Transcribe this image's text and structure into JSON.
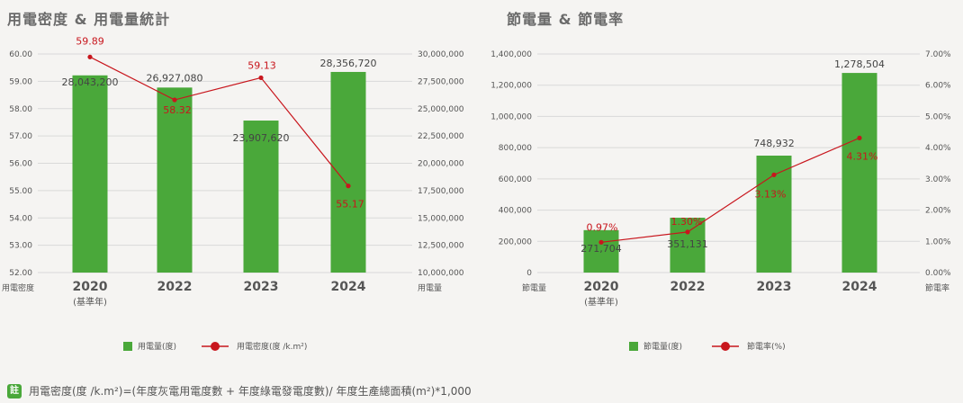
{
  "titles": {
    "left": "用電密度 & 用電量統計",
    "right": "節電量 & 節電率"
  },
  "colors": {
    "bar": "#4aa83a",
    "line": "#c8161d",
    "grid": "#d9d9d9"
  },
  "chart_data": [
    {
      "type": "bar+line",
      "title": "用電密度 & 用電量統計",
      "categories": [
        "2020",
        "2022",
        "2023",
        "2024"
      ],
      "category_sub": [
        "(基準年)",
        "",
        "",
        ""
      ],
      "left_axis": {
        "name": "用電密度",
        "ylim": [
          52,
          60
        ],
        "ticks": [
          "52.00",
          "53.00",
          "54.00",
          "55.00",
          "56.00",
          "57.00",
          "58.00",
          "59.00",
          "60.00"
        ],
        "tick_values": [
          52,
          53,
          54,
          55,
          56,
          57,
          58,
          59,
          60
        ]
      },
      "right_axis": {
        "name": "用電量",
        "ylim": [
          10000000,
          30000000
        ],
        "ticks": [
          "10,000,000",
          "12,500,000",
          "15,000,000",
          "17,500,000",
          "20,000,000",
          "22,500,000",
          "25,000,000",
          "27,500,000",
          "30,000,000"
        ],
        "tick_values": [
          10000000,
          12500000,
          15000000,
          17500000,
          20000000,
          22500000,
          25000000,
          27500000,
          30000000
        ]
      },
      "bar_series": {
        "name": "用電量(度)",
        "axis": "right",
        "values": [
          28043200,
          26927080,
          23907620,
          28356720
        ],
        "labels": [
          "28,043,200",
          "26,927,080",
          "23,907,620",
          "28,356,720"
        ]
      },
      "line_series": {
        "name": "用電密度(度 /k.m²)",
        "axis": "left",
        "values": [
          59.89,
          58.32,
          59.13,
          55.17
        ],
        "labels": [
          "59.89",
          "58.32",
          "59.13",
          "55.17"
        ]
      },
      "grid": true,
      "legend": "bottom"
    },
    {
      "type": "bar+line",
      "title": "節電量 & 節電率",
      "categories": [
        "2020",
        "2022",
        "2023",
        "2024"
      ],
      "category_sub": [
        "(基準年)",
        "",
        "",
        ""
      ],
      "left_axis": {
        "name": "節電量",
        "ylim": [
          0,
          1400000
        ],
        "ticks": [
          "0",
          "200,000",
          "400,000",
          "600,000",
          "800,000",
          "1,000,000",
          "1,200,000",
          "1,400,000"
        ],
        "tick_values": [
          0,
          200000,
          400000,
          600000,
          800000,
          1000000,
          1200000,
          1400000
        ]
      },
      "right_axis": {
        "name": "節電率",
        "ylim": [
          0,
          7
        ],
        "ticks": [
          "0.00%",
          "1.00%",
          "2.00%",
          "3.00%",
          "4.00%",
          "5.00%",
          "6.00%",
          "7.00%"
        ],
        "tick_values": [
          0,
          1,
          2,
          3,
          4,
          5,
          6,
          7
        ]
      },
      "bar_series": {
        "name": "節電量(度)",
        "axis": "left",
        "values": [
          271704,
          351131,
          748932,
          1278504
        ],
        "labels": [
          "271,704",
          "351,131",
          "748,932",
          "1,278,504"
        ]
      },
      "line_series": {
        "name": "節電率(%)",
        "axis": "right",
        "values": [
          0.97,
          1.3,
          3.13,
          4.31
        ],
        "labels": [
          "0.97%",
          "1.30%",
          "3.13%",
          "4.31%"
        ]
      },
      "grid": true,
      "legend": "bottom"
    }
  ],
  "footnote": {
    "badge": "註",
    "text": "用電密度(度 /k.m²)=(年度灰電用電度數 + 年度綠電發電度數)/ 年度生產總面積(m²)*1,000"
  }
}
